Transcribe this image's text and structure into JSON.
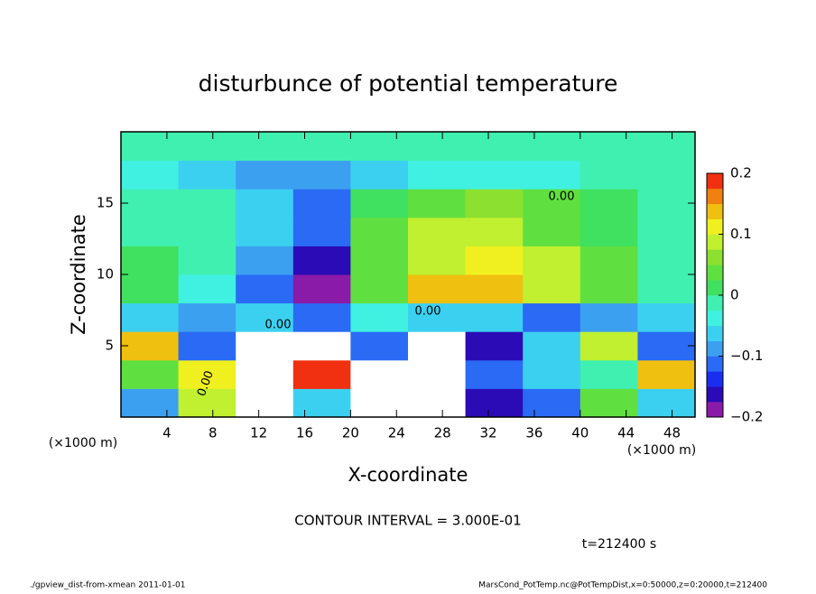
{
  "chart_data": {
    "type": "heatmap",
    "title": "disturbunce of potential temperature",
    "xlabel": "X-coordinate",
    "ylabel": "Z-coordinate",
    "x_unit": "(×1000 m)",
    "y_unit": "(×1000 m)",
    "contour_interval": "CONTOUR INTERVAL = 3.000E-01",
    "time_label": "t=212400 s",
    "footer_left": "./gpview_dist-from-xmean  2011-01-01",
    "footer_right": "MarsCond_PotTemp.nc@PotTempDist,x=0:50000,z=0:20000,t=212400",
    "contour_labels": [
      "0.00",
      "0.00",
      "0.00",
      "0.00"
    ],
    "x": [
      2.5,
      7.5,
      12.5,
      17.5,
      22.5,
      27.5,
      32.5,
      37.5,
      42.5,
      47.5
    ],
    "y": [
      1,
      3,
      5,
      7,
      9,
      11,
      13,
      15,
      17,
      19
    ],
    "values": [
      [
        -0.08,
        0.1,
        -0.3,
        -0.05,
        -0.3,
        -0.3,
        -0.15,
        -0.12,
        0.05,
        -0.05
      ],
      [
        0.05,
        0.12,
        -0.3,
        0.18,
        -0.3,
        -0.3,
        -0.1,
        -0.05,
        0,
        0.15
      ],
      [
        0.15,
        -0.12,
        -0.3,
        -0.3,
        -0.1,
        -0.3,
        -0.15,
        -0.05,
        0.1,
        -0.12
      ],
      [
        -0.05,
        -0.08,
        -0.06,
        -0.1,
        -0.04,
        -0.06,
        -0.05,
        -0.1,
        -0.08,
        -0.06
      ],
      [
        0.01,
        -0.03,
        -0.1,
        -0.18,
        0.03,
        0.13,
        0.14,
        0.1,
        0.04,
        0
      ],
      [
        0.01,
        -0.02,
        -0.08,
        -0.15,
        0.03,
        0.1,
        0.12,
        0.08,
        0.03,
        0
      ],
      [
        0,
        -0.02,
        -0.06,
        -0.12,
        0.04,
        0.08,
        0.08,
        0.05,
        0.02,
        0
      ],
      [
        0,
        -0.02,
        -0.06,
        -0.1,
        0.02,
        0.05,
        0.06,
        0.04,
        0.02,
        0
      ],
      [
        -0.03,
        -0.05,
        -0.08,
        -0.09,
        -0.06,
        -0.04,
        -0.03,
        -0.03,
        -0.02,
        -0.02
      ],
      [
        0,
        0,
        0,
        0,
        0,
        0,
        0,
        0,
        0,
        0
      ]
    ],
    "xlim": [
      0,
      50
    ],
    "ylim": [
      0,
      20
    ],
    "xticks": [
      4,
      8,
      12,
      16,
      20,
      24,
      28,
      32,
      36,
      40,
      44,
      48
    ],
    "yticks": [
      5,
      10,
      15
    ],
    "out_of_range_color": "#ffffff",
    "colorbar": {
      "levels": [
        -0.2,
        -0.175,
        -0.15,
        -0.125,
        -0.1,
        -0.075,
        -0.05,
        -0.025,
        0,
        0.025,
        0.05,
        0.075,
        0.1,
        0.125,
        0.15,
        0.175,
        0.2
      ],
      "colors": [
        "#8a1aa8",
        "#2a0bb5",
        "#1a2ef0",
        "#2a6af5",
        "#3ca0f0",
        "#3cd0f0",
        "#40f0e0",
        "#40f0b0",
        "#40e060",
        "#60e040",
        "#8ce030",
        "#c0f030",
        "#f0f020",
        "#f0c010",
        "#f08010",
        "#f03010",
        "#f090a0"
      ],
      "lim": [
        -0.2,
        0.2
      ],
      "ticks": [
        {
          "value": -0.2,
          "label": "−0.2"
        },
        {
          "value": -0.1,
          "label": "−0.1"
        },
        0,
        0.1,
        0.2
      ]
    }
  }
}
